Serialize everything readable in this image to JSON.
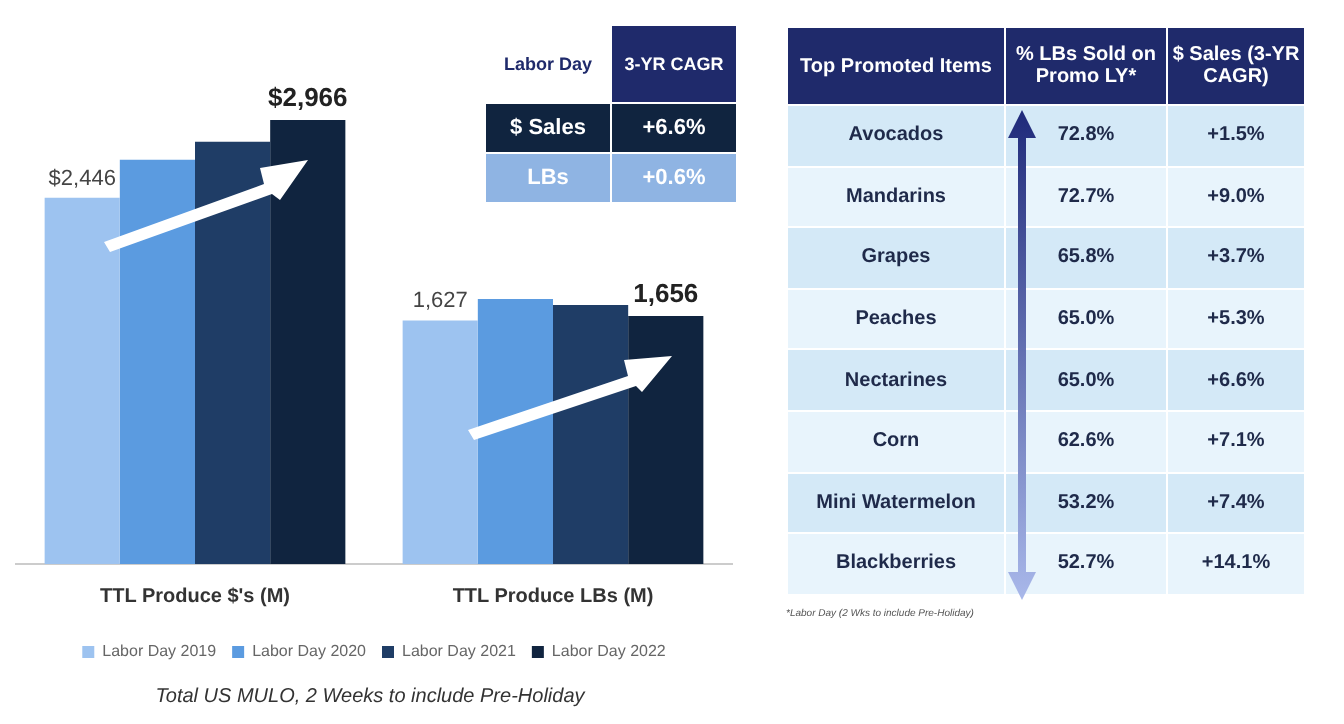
{
  "chart_data": [
    {
      "type": "bar",
      "categories": [
        "TTL Produce $'s (M)",
        "TTL Produce LBs (M)"
      ],
      "series": [
        {
          "name": "Labor Day 2019",
          "color": "#9dc3f0",
          "values": [
            2446,
            1627
          ],
          "value_labels": [
            "$2,446",
            "1,627"
          ]
        },
        {
          "name": "Labor Day 2020",
          "color": "#5b9be0",
          "values": [
            2700,
            1770
          ]
        },
        {
          "name": "Labor Day 2021",
          "color": "#1f3d66",
          "values": [
            2820,
            1730
          ]
        },
        {
          "name": "Labor Day 2022",
          "color": "#10243f",
          "values": [
            2966,
            1656
          ],
          "value_labels": [
            "$2,966",
            "1,656"
          ]
        }
      ],
      "tick_labels": "x",
      "grid": false,
      "legend": "bottom",
      "annotations": [
        "Labor Day",
        "3-YR CAGR",
        "$ Sales",
        "+6.6%",
        "LBs",
        "+0.6%",
        "Total US MULO, 2 Weeks to include Pre-Holiday"
      ]
    },
    {
      "type": "other",
      "xlabel": "Top Promoted Items",
      "categories": [
        "Avocados",
        "Mandarins",
        "Grapes",
        "Peaches",
        "Nectarines",
        "Corn",
        "Mini Watermelon",
        "Blackberries"
      ],
      "series": [
        {
          "name": "% LBs Sold on Promo LY*",
          "colors": [
            "#d4e9f7",
            "#e8f4fc",
            "#d4e9f7",
            "#e8f4fc",
            "#d4e9f7",
            "#e8f4fc",
            "#d4e9f7",
            "#e8f4fc"
          ],
          "values": [
            72.8,
            72.7,
            65.8,
            65.0,
            65.0,
            62.6,
            53.2,
            52.7
          ],
          "value_labels": [
            "72.8%",
            "72.7%",
            "65.8%",
            "65.0%",
            "65.0%",
            "62.6%",
            "53.2%",
            "52.7%"
          ]
        },
        {
          "name": "$ Sales (3-YR CAGR)",
          "colors": [
            "#d4e9f7",
            "#e8f4fc",
            "#d4e9f7",
            "#e8f4fc",
            "#d4e9f7",
            "#e8f4fc",
            "#d4e9f7",
            "#e8f4fc"
          ],
          "values": [
            1.5,
            9.0,
            3.7,
            5.3,
            6.6,
            7.1,
            7.4,
            14.1
          ],
          "value_labels": [
            "+1.5%",
            "+9.0%",
            "+3.7%",
            "+5.3%",
            "+6.6%",
            "+7.1%",
            "+7.4%",
            "+14.1%"
          ]
        }
      ],
      "annotations": [
        "*Labor Day (2 Wks to include Pre-Holiday)"
      ]
    }
  ]
}
